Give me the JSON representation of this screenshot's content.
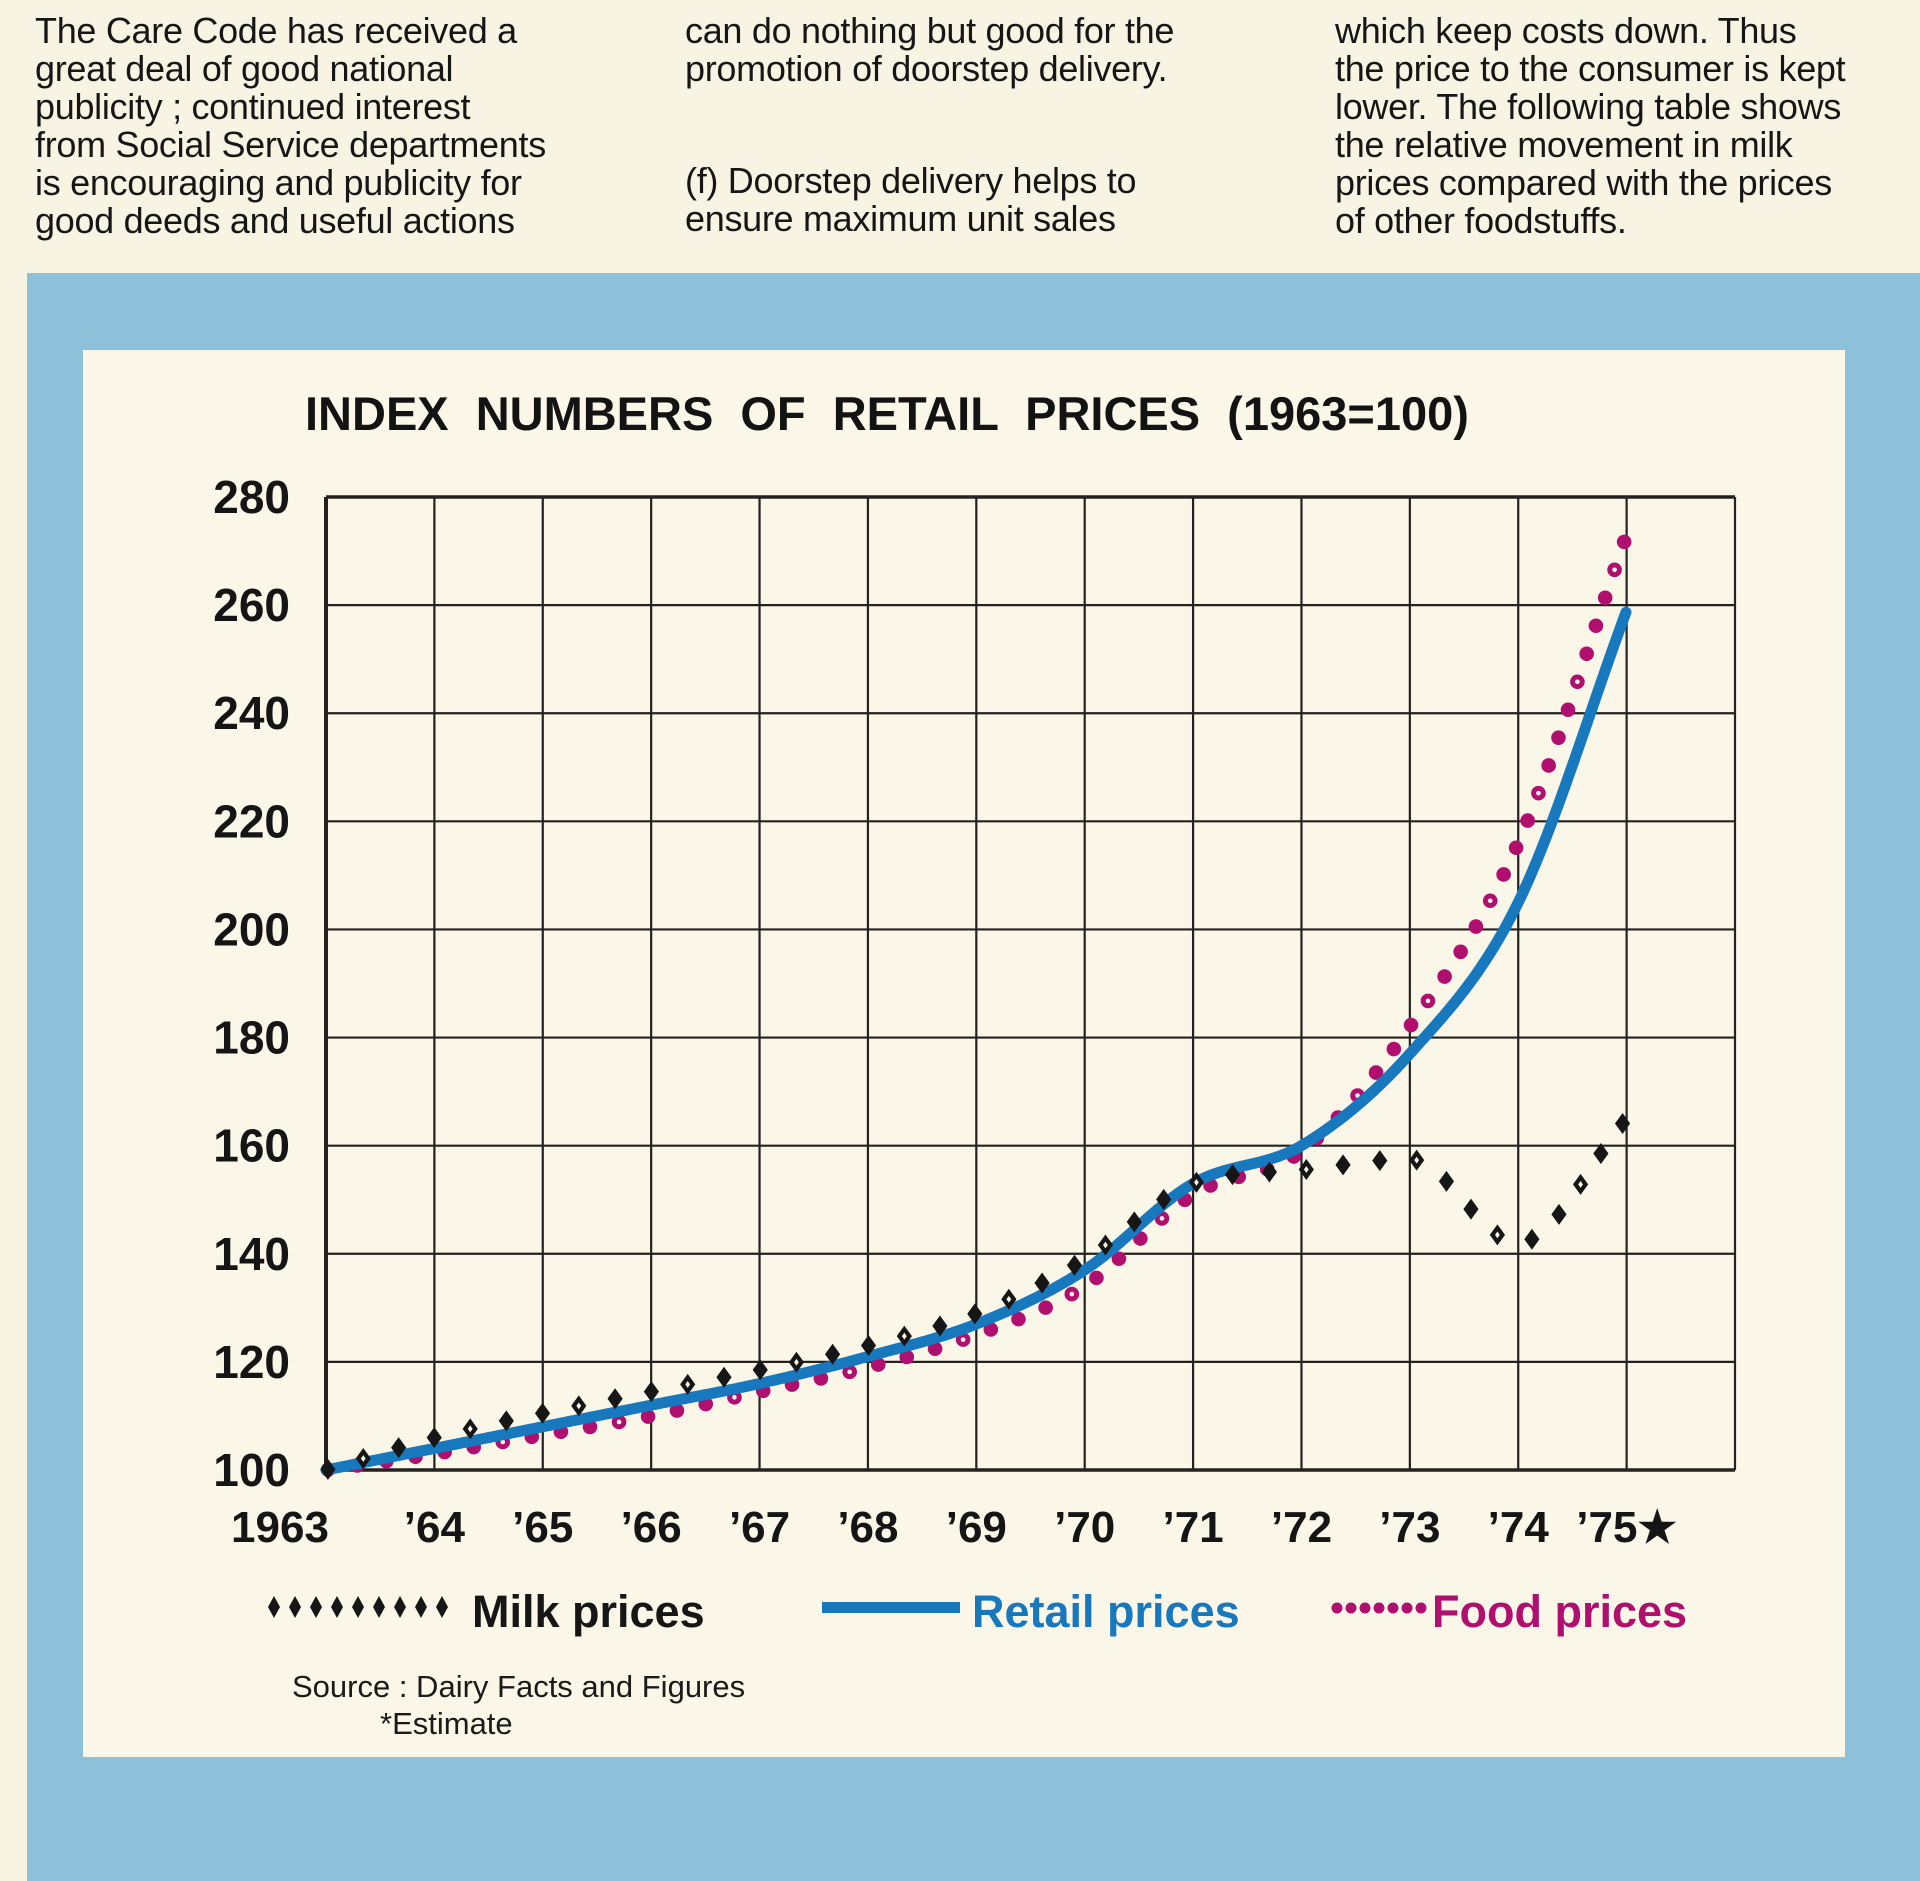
{
  "article": {
    "column1": {
      "lines": [
        "The Care Code has received a",
        "great deal of good national",
        "publicity ; continued interest",
        "from Social Service departments",
        "is encouraging and publicity for",
        "good deeds and useful actions"
      ]
    },
    "column2": {
      "paragraph1": [
        "can do nothing but good for the",
        "promotion of doorstep delivery."
      ],
      "paragraph2": [
        "(f) Doorstep delivery helps to",
        "ensure maximum unit sales"
      ]
    },
    "column3": {
      "lines": [
        "which keep costs down. Thus",
        "the price to the consumer is kept",
        "lower. The following table shows",
        "the relative movement in milk",
        "prices compared with the prices",
        "of other foodstuffs."
      ]
    }
  },
  "chart_data": {
    "type": "line",
    "title": "INDEX NUMBERS OF RETAIL PRICES (1963=100)",
    "x_labels": [
      "1963",
      "’64",
      "’65",
      "’66",
      "’67",
      "’68",
      "’69",
      "’70",
      "’71",
      "’72",
      "’73",
      "’74",
      "’75★"
    ],
    "years": [
      1963,
      1964,
      1965,
      1966,
      1967,
      1968,
      1969,
      1970,
      1971,
      1972,
      1973,
      1974,
      1975
    ],
    "y_ticks": [
      100,
      120,
      140,
      160,
      180,
      200,
      220,
      240,
      260,
      280
    ],
    "ylim": [
      100,
      280
    ],
    "grid": true,
    "legend_position": "bottom",
    "series": [
      {
        "name": "Milk prices",
        "style": "diamond-dotted",
        "color": "#161616",
        "values": [
          100,
          106,
          110.5,
          114.5,
          118.5,
          123,
          129,
          139,
          153,
          155.5,
          157.5,
          142,
          165
        ]
      },
      {
        "name": "Retail prices",
        "style": "solid",
        "color": "#1878bd",
        "values": [
          100,
          104,
          108,
          112,
          116,
          121,
          127,
          137,
          153,
          160,
          177,
          205,
          259
        ]
      },
      {
        "name": "Food prices",
        "style": "round-dotted",
        "color": "#b00f70",
        "values": [
          100,
          103,
          106.5,
          110,
          114.5,
          119,
          125,
          134,
          151,
          159,
          182,
          216,
          273
        ]
      }
    ],
    "footnote_marker": "★",
    "source_line1": "Source :  Dairy Facts and Figures",
    "source_line2": "*Estimate"
  },
  "colors": {
    "page_background": "#f8f4e3",
    "panel_background": "#fbf7e8",
    "frame_blue": "#8cc1d9",
    "retail_blue": "#1878bd",
    "food_magenta": "#b00f70",
    "ink": "#161616"
  }
}
